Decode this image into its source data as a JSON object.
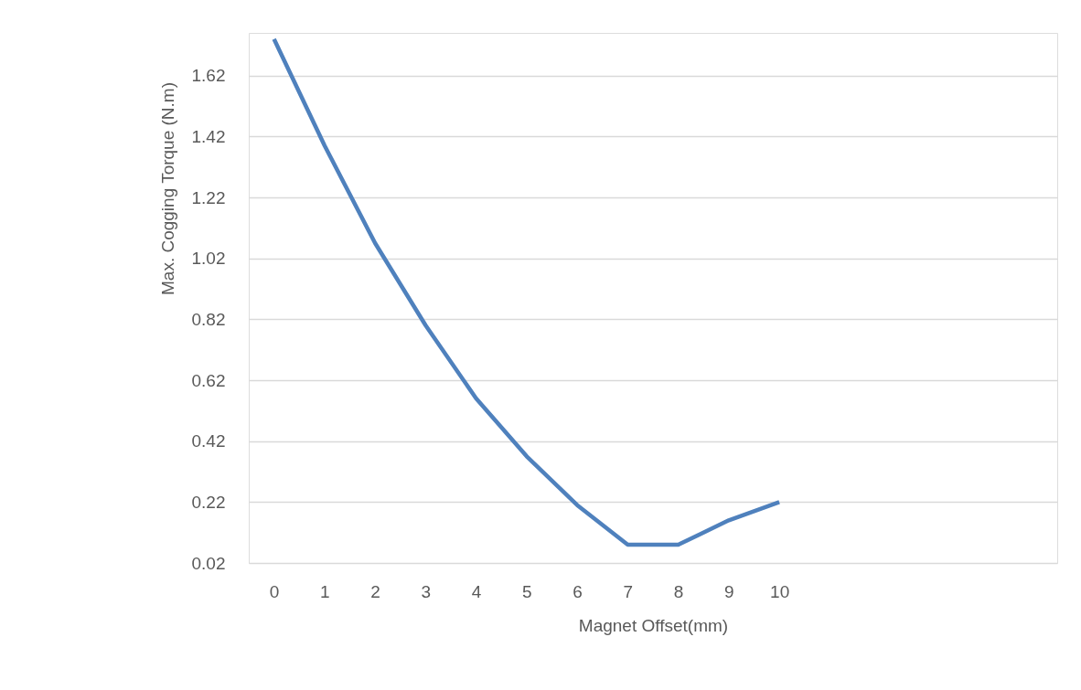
{
  "chart_data": {
    "type": "line",
    "xlabel": "Magnet Offset(mm)",
    "ylabel": "Max. Cogging Torque (N.m)",
    "x": [
      0,
      1,
      2,
      3,
      4,
      5,
      6,
      7,
      8,
      9,
      10
    ],
    "series": [
      {
        "color": "#4f81bd",
        "values": [
          1.74,
          1.39,
          1.07,
          0.8,
          0.56,
          0.37,
          0.21,
          0.08,
          0.08,
          0.16,
          0.22
        ]
      }
    ],
    "xlim": [
      -0.5,
      15.5
    ],
    "xticks": [
      0,
      1,
      2,
      3,
      4,
      5,
      6,
      7,
      8,
      9,
      10
    ],
    "ylim": [
      0.02,
      1.76
    ],
    "yticks": [
      0.02,
      0.22,
      0.42,
      0.62,
      0.82,
      1.02,
      1.22,
      1.42,
      1.62
    ],
    "grid": "y",
    "marker": "none",
    "line_style": "solid"
  }
}
